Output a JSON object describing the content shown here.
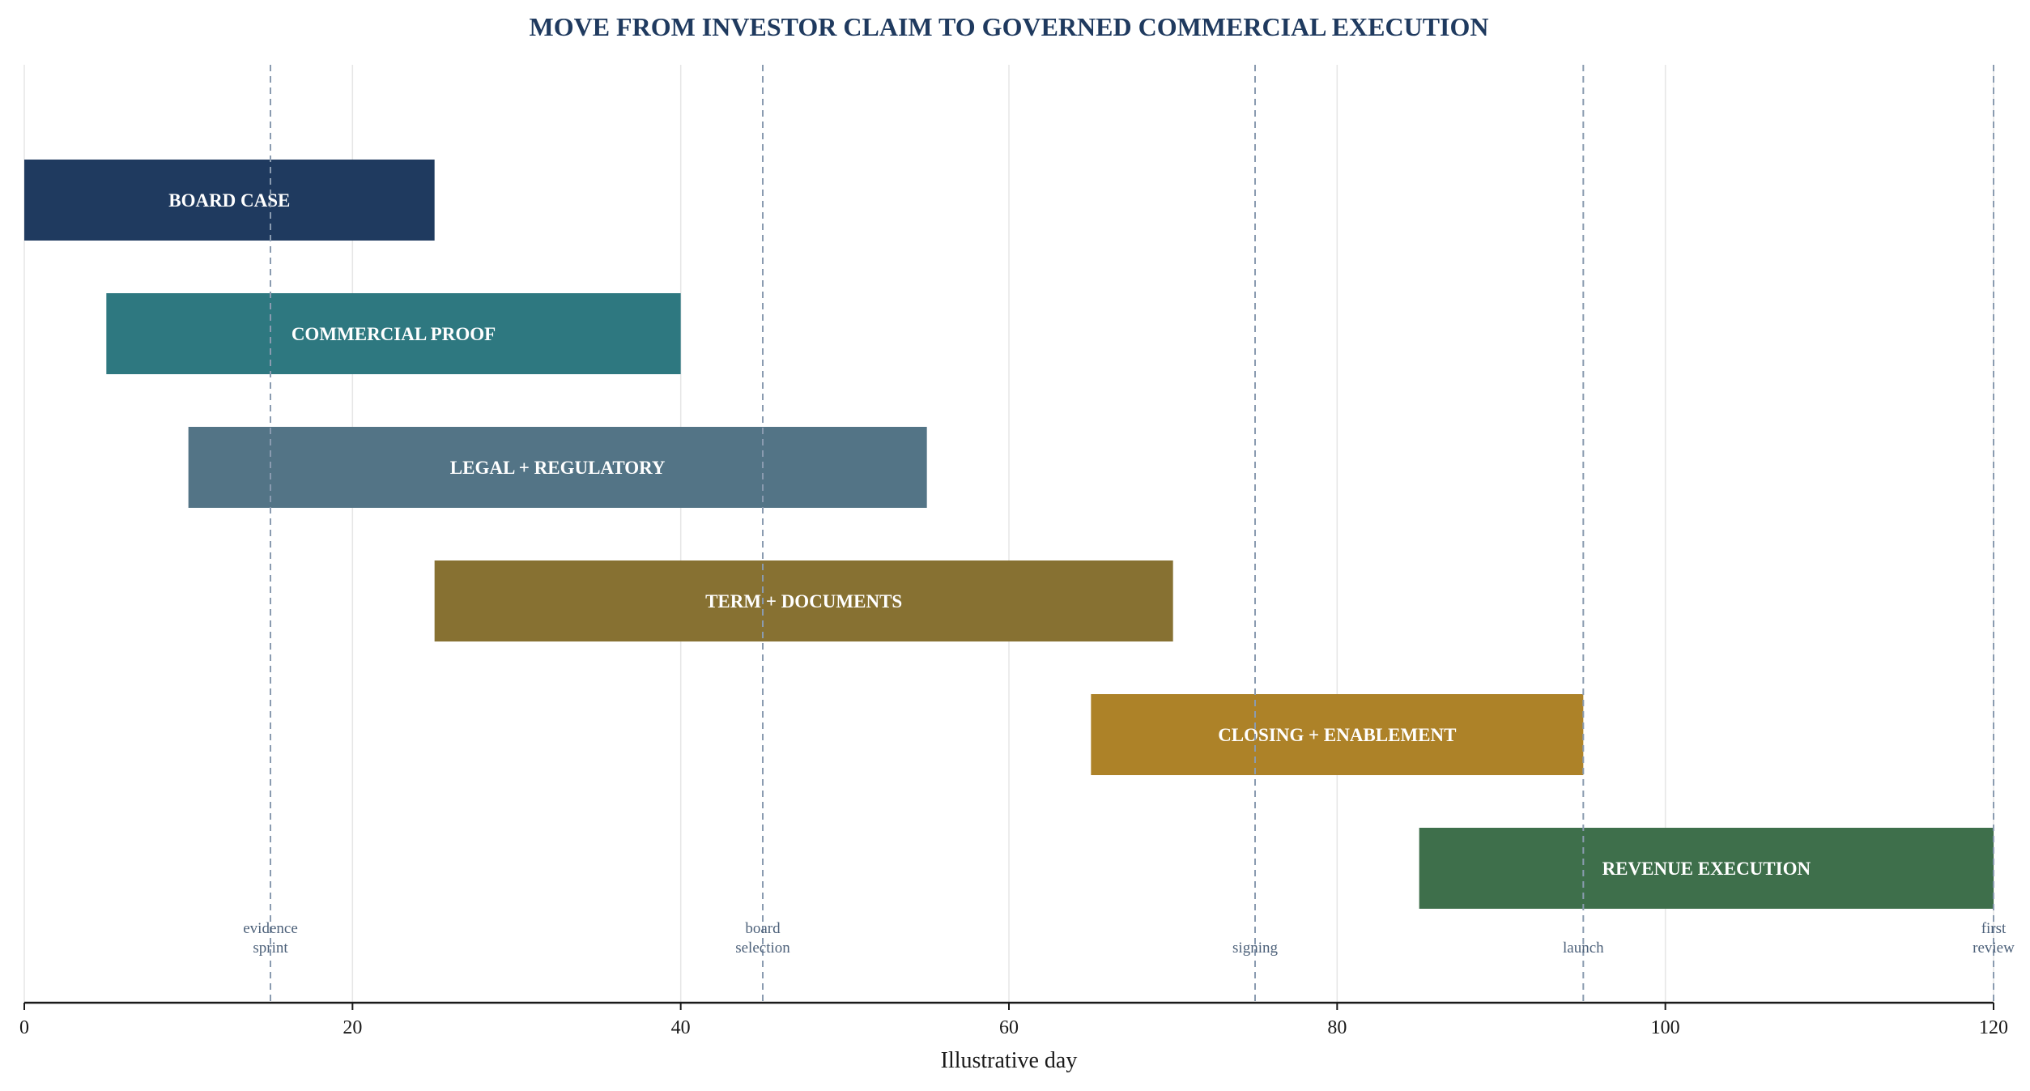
{
  "chart_data": {
    "type": "gantt",
    "title": "MOVE FROM INVESTOR CLAIM TO GOVERNED COMMERCIAL EXECUTION",
    "xlabel": "Illustrative day",
    "ylabel": "",
    "xlim": [
      0,
      120
    ],
    "xticks": [
      "0",
      "20",
      "40",
      "60",
      "80",
      "100",
      "120"
    ],
    "grid": "vertical",
    "tasks": [
      {
        "name": "BOARD CASE",
        "start": 0,
        "end": 25,
        "color": "#1f3a5f"
      },
      {
        "name": "COMMERCIAL PROOF",
        "start": 5,
        "end": 40,
        "color": "#2e7880"
      },
      {
        "name": "LEGAL + REGULATORY",
        "start": 10,
        "end": 55,
        "color": "#537486"
      },
      {
        "name": "TERM + DOCUMENTS",
        "start": 25,
        "end": 70,
        "color": "#877132"
      },
      {
        "name": "CLOSING + ENABLEMENT",
        "start": 65,
        "end": 95,
        "color": "#ad8228"
      },
      {
        "name": "REVENUE EXECUTION",
        "start": 85,
        "end": 120,
        "color": "#3e6f4b"
      }
    ],
    "milestones": [
      {
        "day": 15,
        "lines": [
          "evidence",
          "sprint"
        ]
      },
      {
        "day": 45,
        "lines": [
          "board",
          "selection"
        ]
      },
      {
        "day": 75,
        "lines": [
          "signing"
        ]
      },
      {
        "day": 95,
        "lines": [
          "launch"
        ]
      },
      {
        "day": 120,
        "lines": [
          "first",
          "review"
        ]
      }
    ],
    "colors": {
      "title": "#1f3a5f",
      "milestone_line": "#8a9bb0",
      "milestone_text": "#4d617a",
      "grid": "#e6e6e6",
      "axis": "#1a1a1a"
    }
  }
}
